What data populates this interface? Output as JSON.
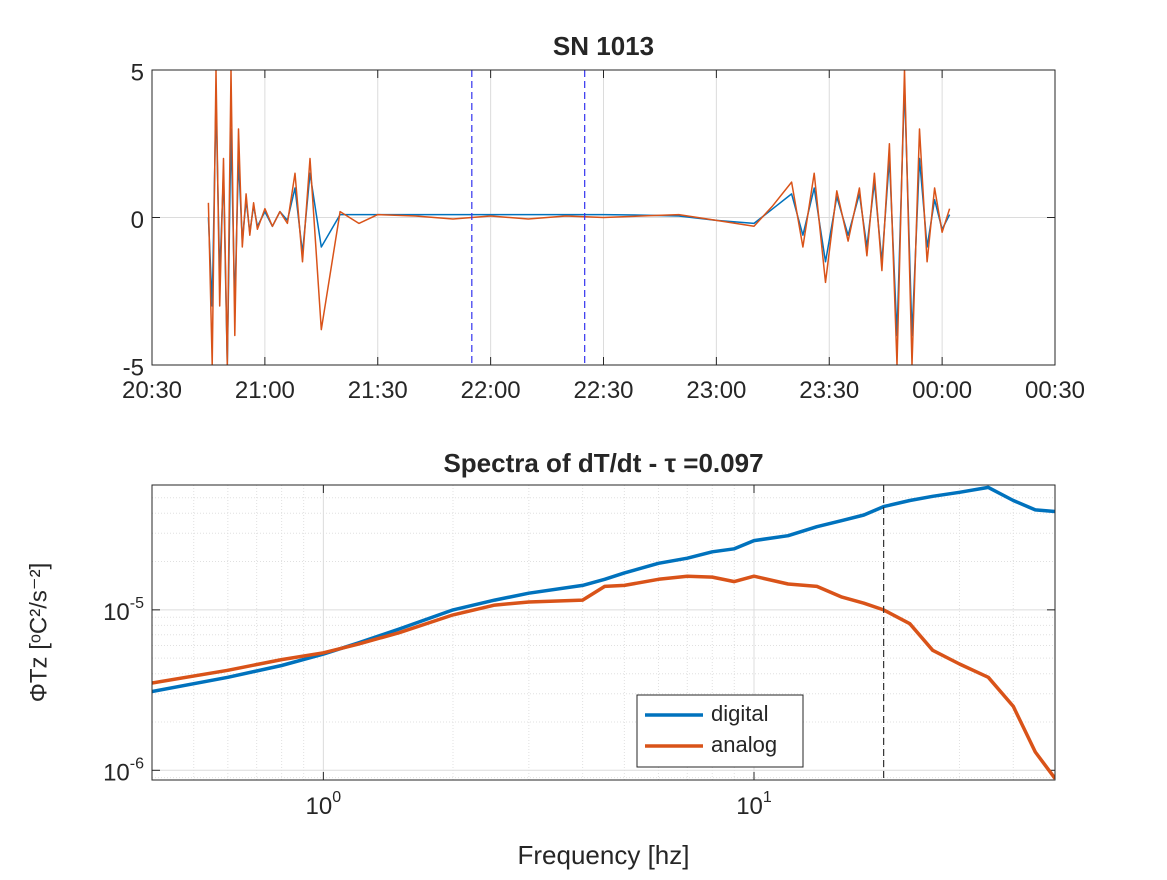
{
  "chart_data": [
    {
      "type": "line",
      "title": "SN 1013",
      "x": [
        1245,
        1246,
        1247,
        1248,
        1249,
        1250,
        1251,
        1252,
        1253,
        1254,
        1255,
        1256,
        1257,
        1258,
        1260,
        1262,
        1264,
        1266,
        1268,
        1270,
        1272,
        1275,
        1280,
        1285,
        1290,
        1300,
        1310,
        1320,
        1330,
        1340,
        1350,
        1360,
        1370,
        1380,
        1390,
        1395,
        1400,
        1403,
        1406,
        1409,
        1412,
        1415,
        1418,
        1420,
        1422,
        1424,
        1426,
        1428,
        1430,
        1432,
        1434,
        1436,
        1438,
        1440,
        1442
      ],
      "series": [
        {
          "name": "digital",
          "color": "#0072bd",
          "values": [
            0,
            -3,
            4,
            -2,
            1.5,
            -5,
            3,
            -3,
            2,
            -0.8,
            0.6,
            -0.5,
            0.4,
            -0.3,
            0.2,
            -0.3,
            0.2,
            -0.1,
            1,
            -1.2,
            1.5,
            -1,
            0.1,
            0.1,
            0.1,
            0.1,
            0.1,
            0.1,
            0.1,
            0.1,
            0.1,
            0.08,
            0.05,
            -0.1,
            -0.2,
            0.3,
            0.8,
            -0.6,
            1,
            -1.5,
            0.7,
            -0.6,
            0.8,
            -1,
            1.2,
            -1.5,
            2,
            -4,
            4.5,
            -4,
            2,
            -1,
            0.6,
            -0.4,
            0.1
          ]
        },
        {
          "name": "analog",
          "color": "#d95319",
          "values": [
            0.5,
            -5,
            5,
            -3,
            2,
            -5,
            5,
            -4,
            3,
            -1,
            0.8,
            -0.6,
            0.5,
            -0.4,
            0.3,
            -0.3,
            0.2,
            -0.2,
            1.5,
            -1.5,
            2,
            -3.8,
            0.2,
            -0.2,
            0.1,
            0.05,
            -0.05,
            0.05,
            -0.05,
            0.05,
            0,
            0.05,
            0.1,
            -0.1,
            -0.3,
            0.4,
            1.2,
            -1,
            1.5,
            -2.2,
            0.9,
            -0.8,
            1,
            -1.3,
            1.5,
            -1.8,
            2.5,
            -5,
            5,
            -5,
            3,
            -1.5,
            1,
            -0.5,
            0.3
          ]
        }
      ],
      "xlim": [
        1230,
        1470
      ],
      "xticks": [
        {
          "value": 1230,
          "label": "20:30"
        },
        {
          "value": 1260,
          "label": "21:00"
        },
        {
          "value": 1290,
          "label": "21:30"
        },
        {
          "value": 1320,
          "label": "22:00"
        },
        {
          "value": 1350,
          "label": "22:30"
        },
        {
          "value": 1380,
          "label": "23:00"
        },
        {
          "value": 1410,
          "label": "23:30"
        },
        {
          "value": 1440,
          "label": "00:00"
        },
        {
          "value": 1470,
          "label": "00:30"
        }
      ],
      "ylim": [
        -5,
        5
      ],
      "yticks": [
        -5,
        0,
        5
      ],
      "grid": true,
      "vlines": [
        1315,
        1345
      ],
      "vline_color": "#3333ee"
    },
    {
      "type": "line",
      "title": "Spectra of dT/dt - τ =0.097",
      "xlabel": "Frequency [hz]",
      "ylabel": "ΦTz  [ᵒC²/s⁻²]",
      "x": [
        0.4,
        0.6,
        0.8,
        1,
        1.2,
        1.5,
        2,
        2.5,
        3,
        4,
        4.5,
        5,
        6,
        7,
        8,
        9,
        10,
        12,
        14,
        16,
        18,
        20,
        23,
        26,
        30,
        35,
        40,
        45,
        50
      ],
      "series": [
        {
          "name": "digital",
          "color": "#0072bd",
          "values": [
            3.1e-06,
            3.8e-06,
            4.5e-06,
            5.3e-06,
            6.2e-06,
            7.6e-06,
            1e-05,
            1.15e-05,
            1.27e-05,
            1.42e-05,
            1.55e-05,
            1.7e-05,
            1.95e-05,
            2.1e-05,
            2.3e-05,
            2.4e-05,
            2.7e-05,
            2.9e-05,
            3.3e-05,
            3.6e-05,
            3.9e-05,
            4.4e-05,
            4.8e-05,
            5.1e-05,
            5.4e-05,
            5.8e-05,
            4.8e-05,
            4.2e-05,
            4.1e-05
          ]
        },
        {
          "name": "analog",
          "color": "#d95319",
          "values": [
            3.5e-06,
            4.2e-06,
            4.9e-06,
            5.4e-06,
            6.1e-06,
            7.2e-06,
            9.3e-06,
            1.07e-05,
            1.12e-05,
            1.15e-05,
            1.4e-05,
            1.42e-05,
            1.55e-05,
            1.62e-05,
            1.6e-05,
            1.5e-05,
            1.62e-05,
            1.45e-05,
            1.4e-05,
            1.2e-05,
            1.1e-05,
            1e-05,
            8.2e-06,
            5.6e-06,
            4.6e-06,
            3.8e-06,
            2.5e-06,
            1.3e-06,
            8.9e-07
          ]
        }
      ],
      "xlim": [
        0.4,
        50
      ],
      "xticks": [
        {
          "value": 1,
          "label": "10",
          "exponent": "0"
        },
        {
          "value": 10,
          "label": "10",
          "exponent": "1"
        }
      ],
      "ylim": [
        8.7e-07,
        6e-05
      ],
      "yticks": [
        {
          "value": 1e-06,
          "label": "10",
          "exponent": "-6"
        },
        {
          "value": 1e-05,
          "label": "10",
          "exponent": "-5"
        }
      ],
      "log_x": true,
      "log_y": true,
      "grid": true,
      "minor_grid": true,
      "vlines": [
        20
      ],
      "vline_color": "#333333",
      "legend": "south"
    }
  ]
}
